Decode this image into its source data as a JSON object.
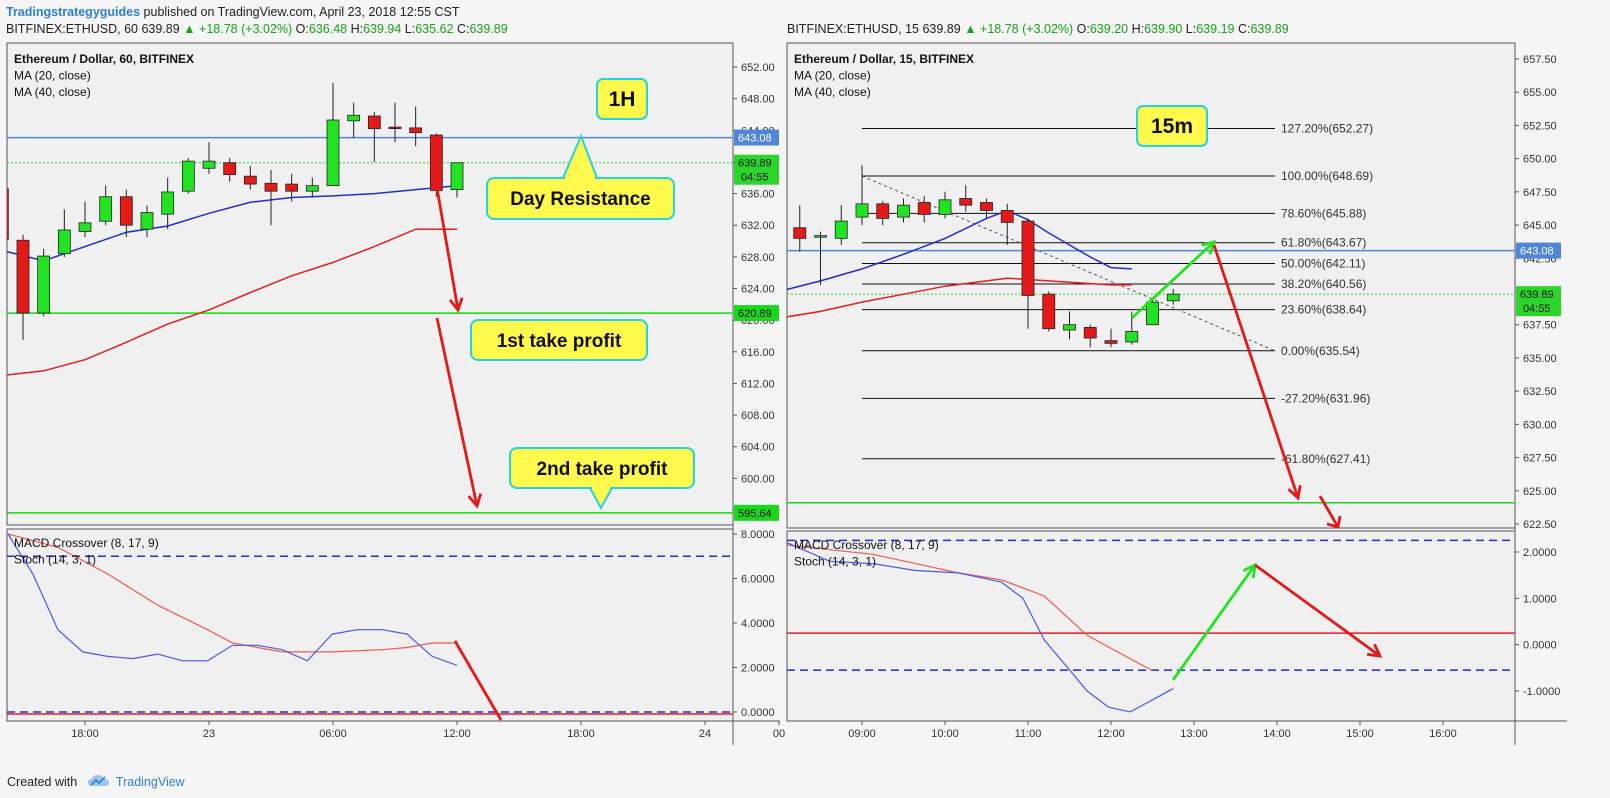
{
  "header": {
    "brand": "Tradingstrategyguides",
    "published": "published on TradingView.com, April 23, 2018 12:55 CST"
  },
  "footer": {
    "created_with": "Created with",
    "tradingview": "TradingView"
  },
  "colors": {
    "bull": "#22e322",
    "bear": "#e41a1a",
    "ma20": "#1f2fcc",
    "ma40": "#e31e1e",
    "resistance": "#4f86d9",
    "support": "#19d719",
    "label_fill": "#fff94d",
    "label_border": "#23d3e0"
  },
  "chart_data": [
    {
      "type": "candlestick",
      "symbol_line": {
        "symbol": "BITFINEX:ETHUSD, 60",
        "close": "639.89",
        "arrow": "▲",
        "change": "+18.78 (+3.02%)",
        "o_label": "O:",
        "o": "636.48",
        "h_label": "H:",
        "h": "639.94",
        "l_label": "L:",
        "l": "635.62",
        "c_label": "C:",
        "c": "639.89"
      },
      "legend": [
        "Ethereum / Dollar, 60, BITFINEX",
        "MA (20, close)",
        "MA (40, close)"
      ],
      "timeframe_label": "1H",
      "y_ticks": [
        "652.00",
        "648.00",
        "644.00",
        "640.00",
        "636.00",
        "632.00",
        "628.00",
        "624.00",
        "620.00",
        "616.00",
        "612.00",
        "608.00",
        "604.00",
        "600.00",
        "596.00"
      ],
      "ylim": [
        594,
        654
      ],
      "x_ticks": [
        {
          "label": "18:00",
          "bar": 6
        },
        {
          "label": "23",
          "bar": 12
        },
        {
          "label": "06:00",
          "bar": 18
        },
        {
          "label": "12:00",
          "bar": 24
        },
        {
          "label": "18:00",
          "bar": 30
        },
        {
          "label": "24",
          "bar": 36
        }
      ],
      "candles": [
        [
          1,
          639.6,
          636.3,
          639.8,
          636.0
        ],
        [
          2,
          636.6,
          630.2,
          636.8,
          630.0
        ],
        [
          3,
          630.1,
          620.9,
          630.8,
          617.5
        ],
        [
          4,
          620.9,
          628.1,
          629.0,
          620.5
        ],
        [
          5,
          628.4,
          631.4,
          634.0,
          628.0
        ],
        [
          6,
          631.2,
          632.3,
          635.0,
          630.5
        ],
        [
          7,
          632.5,
          635.6,
          637.0,
          632.0
        ],
        [
          8,
          635.6,
          632.0,
          636.5,
          630.5
        ],
        [
          9,
          631.5,
          633.6,
          634.5,
          630.5
        ],
        [
          10,
          633.4,
          636.2,
          638.0,
          631.5
        ],
        [
          11,
          636.3,
          640.1,
          640.5,
          636.0
        ],
        [
          12,
          639.2,
          640.1,
          642.5,
          638.5
        ],
        [
          13,
          639.9,
          638.4,
          640.5,
          637.5
        ],
        [
          14,
          638.2,
          637.2,
          639.5,
          636.5
        ],
        [
          15,
          637.3,
          636.3,
          639.0,
          632.0
        ],
        [
          16,
          637.2,
          636.3,
          638.5,
          635.0
        ],
        [
          17,
          636.3,
          637.0,
          638.0,
          635.5
        ],
        [
          18,
          637.0,
          645.3,
          650.0,
          637.0
        ],
        [
          19,
          645.2,
          645.9,
          647.5,
          643.0
        ],
        [
          20,
          645.8,
          644.2,
          646.3,
          640.0
        ],
        [
          21,
          644.4,
          644.3,
          647.5,
          642.5
        ],
        [
          22,
          644.3,
          643.7,
          647.0,
          642.0
        ],
        [
          23,
          643.4,
          636.4,
          643.6,
          635.6
        ],
        [
          24,
          636.5,
          639.9,
          639.9,
          635.5
        ]
      ],
      "ma20": [
        [
          0,
          629.5
        ],
        [
          2,
          628.8
        ],
        [
          4,
          627.5
        ],
        [
          6,
          629.3
        ],
        [
          8,
          631.1
        ],
        [
          10,
          631.9
        ],
        [
          12,
          633.5
        ],
        [
          14,
          634.9
        ],
        [
          16,
          635.5
        ],
        [
          18,
          635.7
        ],
        [
          20,
          636.0
        ],
        [
          22,
          636.5
        ],
        [
          24,
          637.0
        ]
      ],
      "ma40": [
        [
          0,
          612.6
        ],
        [
          2,
          613.0
        ],
        [
          4,
          613.6
        ],
        [
          6,
          615.0
        ],
        [
          8,
          617.2
        ],
        [
          10,
          619.5
        ],
        [
          12,
          621.3
        ],
        [
          14,
          623.5
        ],
        [
          16,
          625.6
        ],
        [
          18,
          627.3
        ],
        [
          20,
          629.3
        ],
        [
          22,
          631.5
        ],
        [
          24,
          631.5
        ]
      ],
      "levels": [
        {
          "value": 643.08,
          "label": "643.08",
          "color": "#4f86d9"
        },
        {
          "value": 620.89,
          "label": "620.89",
          "color": "#19d719"
        },
        {
          "value": 595.64,
          "label": "595.64",
          "color": "#19d719"
        }
      ],
      "price_tag": {
        "label": "639.89",
        "timer": "04:55"
      },
      "annotations": [
        "Day Resistance",
        "1st take profit",
        "2nd take profit"
      ],
      "indicator": {
        "legend": [
          "MACD Crossover (8, 17, 9)",
          "Stoch (14, 3, 1)"
        ],
        "y_ticks": [
          "8.0000",
          "6.0000",
          "4.0000",
          "2.0000",
          "0.0000"
        ],
        "ylim": [
          -0.4,
          8.2
        ],
        "dashed_level": 7.0,
        "zero_level": 0.0,
        "blue": [
          [
            0,
            8.0
          ],
          [
            2,
            6.2
          ],
          [
            4,
            3.7
          ],
          [
            6,
            2.7
          ],
          [
            8,
            2.5
          ],
          [
            10,
            2.4
          ],
          [
            12,
            2.6
          ],
          [
            14,
            2.3
          ],
          [
            16,
            2.3
          ],
          [
            18,
            3.0
          ],
          [
            20,
            3.0
          ],
          [
            22,
            2.8
          ],
          [
            24,
            2.3
          ],
          [
            26,
            3.5
          ],
          [
            28,
            3.7
          ],
          [
            30,
            3.7
          ],
          [
            32,
            3.5
          ],
          [
            34,
            2.5
          ],
          [
            36,
            2.1
          ]
        ],
        "red": [
          [
            0,
            8.0
          ],
          [
            4,
            7.4
          ],
          [
            8,
            6.2
          ],
          [
            12,
            4.8
          ],
          [
            16,
            3.7
          ],
          [
            18,
            3.1
          ],
          [
            20,
            2.9
          ],
          [
            22,
            2.7
          ],
          [
            26,
            2.7
          ],
          [
            30,
            2.8
          ],
          [
            32,
            2.9
          ],
          [
            34,
            3.1
          ],
          [
            36,
            3.1
          ]
        ]
      }
    },
    {
      "type": "candlestick",
      "symbol_line": {
        "symbol": "BITFINEX:ETHUSD, 15",
        "close": "639.89",
        "arrow": "▲",
        "change": "+18.78 (+3.02%)",
        "o_label": "O:",
        "o": "639.20",
        "h_label": "H:",
        "h": "639.90",
        "l_label": "L:",
        "l": "639.19",
        "c_label": "C:",
        "c": "639.89"
      },
      "legend": [
        "Ethereum / Dollar, 15, BITFINEX",
        "MA (20, close)",
        "MA (40, close)"
      ],
      "timeframe_label": "15m",
      "y_ticks": [
        "657.50",
        "655.00",
        "652.50",
        "650.00",
        "647.50",
        "645.00",
        "642.50",
        "640.00",
        "637.50",
        "635.00",
        "632.50",
        "630.00",
        "627.50",
        "625.00",
        "622.50"
      ],
      "ylim": [
        622,
        658
      ],
      "x_ticks": [
        {
          "label": "00",
          "bar": 0
        },
        {
          "label": "09:00",
          "bar": 4
        },
        {
          "label": "10:00",
          "bar": 8
        },
        {
          "label": "11:00",
          "bar": 12
        },
        {
          "label": "12:00",
          "bar": 16
        },
        {
          "label": "13:00",
          "bar": 20
        },
        {
          "label": "14:00",
          "bar": 24
        },
        {
          "label": "15:00",
          "bar": 28
        },
        {
          "label": "16:00",
          "bar": 32
        }
      ],
      "candles": [
        [
          1,
          644.8,
          644.0,
          646.5,
          643.0
        ],
        [
          2,
          644.1,
          644.2,
          644.5,
          640.5
        ],
        [
          3,
          644.0,
          645.3,
          646.5,
          643.5
        ],
        [
          4,
          645.6,
          646.6,
          649.5,
          645.0
        ],
        [
          5,
          646.6,
          645.5,
          646.8,
          645.0
        ],
        [
          6,
          645.6,
          646.5,
          647.0,
          645.2
        ],
        [
          7,
          646.7,
          645.8,
          647.2,
          645.2
        ],
        [
          8,
          645.8,
          646.9,
          647.5,
          645.5
        ],
        [
          9,
          647.0,
          646.5,
          648.0,
          646.0
        ],
        [
          10,
          646.7,
          646.1,
          647.0,
          645.5
        ],
        [
          11,
          646.1,
          645.2,
          646.6,
          643.5
        ],
        [
          12,
          645.3,
          639.7,
          645.5,
          637.2
        ],
        [
          13,
          639.8,
          637.2,
          640.0,
          637.0
        ],
        [
          14,
          637.1,
          637.5,
          638.5,
          636.4
        ],
        [
          15,
          637.3,
          636.5,
          637.5,
          635.8
        ],
        [
          16,
          636.3,
          636.1,
          637.2,
          635.8
        ],
        [
          17,
          636.2,
          637.0,
          638.5,
          636.0
        ],
        [
          18,
          637.5,
          639.2,
          639.5,
          637.5
        ],
        [
          19,
          639.3,
          639.8,
          640.2,
          639.0
        ]
      ],
      "ma20": [
        [
          0,
          640.0
        ],
        [
          2,
          640.8
        ],
        [
          4,
          641.7
        ],
        [
          6,
          642.8
        ],
        [
          8,
          644.0
        ],
        [
          10,
          645.5
        ],
        [
          11,
          646.1
        ],
        [
          12,
          645.4
        ],
        [
          13,
          644.4
        ],
        [
          14,
          643.5
        ],
        [
          15,
          642.6
        ],
        [
          16,
          641.8
        ],
        [
          17,
          641.7
        ]
      ],
      "ma40": [
        [
          0,
          638.0
        ],
        [
          2,
          638.5
        ],
        [
          4,
          639.2
        ],
        [
          6,
          639.8
        ],
        [
          8,
          640.4
        ],
        [
          10,
          640.8
        ],
        [
          11,
          641.0
        ],
        [
          12,
          640.9
        ],
        [
          14,
          640.7
        ],
        [
          16,
          640.5
        ],
        [
          17,
          640.5
        ]
      ],
      "fib_levels": [
        {
          "value": 652.27,
          "label": "127.20%(652.27)"
        },
        {
          "value": 648.69,
          "label": "100.00%(648.69)"
        },
        {
          "value": 645.88,
          "label": "78.60%(645.88)"
        },
        {
          "value": 643.67,
          "label": "61.80%(643.67)"
        },
        {
          "value": 642.11,
          "label": "50.00%(642.11)"
        },
        {
          "value": 640.56,
          "label": "38.20%(640.56)"
        },
        {
          "value": 638.64,
          "label": "23.60%(638.64)"
        },
        {
          "value": 635.54,
          "label": "0.00%(635.54)"
        },
        {
          "value": 631.96,
          "label": "-27.20%(631.96)"
        },
        {
          "value": 627.41,
          "label": "-61.80%(627.41)"
        }
      ],
      "levels": [
        {
          "value": 643.08,
          "label": "643.08",
          "color": "#4f86d9"
        },
        {
          "value": 624.1,
          "label": "",
          "color": "#19d719"
        }
      ],
      "price_tag": {
        "label": "639.89",
        "timer": "04:55"
      },
      "indicator": {
        "legend": [
          "MACD Crossover (8, 17, 9)",
          "Stoch (14, 3, 1)"
        ],
        "y_ticks": [
          "2.0000",
          "1.0000",
          "0.0000",
          "-1.0000"
        ],
        "ylim": [
          -1.65,
          2.45
        ],
        "dashed_upper": 2.25,
        "dashed_lower": -0.55,
        "red_level": 0.25,
        "blue": [
          [
            0,
            2.2
          ],
          [
            2,
            1.8
          ],
          [
            4,
            1.75
          ],
          [
            6,
            1.6
          ],
          [
            8,
            1.55
          ],
          [
            10,
            1.35
          ],
          [
            11,
            1.0
          ],
          [
            12,
            0.1
          ],
          [
            13,
            -0.45
          ],
          [
            14,
            -1.0
          ],
          [
            15,
            -1.35
          ],
          [
            16,
            -1.45
          ],
          [
            17,
            -1.2
          ],
          [
            18,
            -0.95
          ]
        ],
        "red": [
          [
            0,
            2.15
          ],
          [
            2,
            2.05
          ],
          [
            4,
            1.95
          ],
          [
            6,
            1.75
          ],
          [
            8,
            1.55
          ],
          [
            10,
            1.4
          ],
          [
            12,
            1.05
          ],
          [
            14,
            0.2
          ],
          [
            16,
            -0.3
          ],
          [
            17,
            -0.55
          ]
        ]
      }
    }
  ]
}
